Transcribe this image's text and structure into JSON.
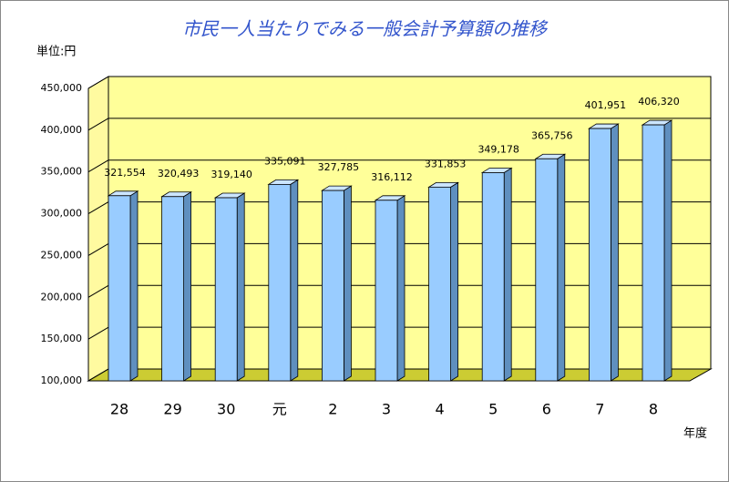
{
  "chart_data": {
    "type": "bar3d",
    "title": "市民一人当たりでみる一般会計予算額の推移",
    "y_label": "単位:円",
    "x_label": "年度",
    "categories": [
      "28",
      "29",
      "30",
      "元",
      "2",
      "3",
      "4",
      "5",
      "6",
      "7",
      "8"
    ],
    "values": [
      321554,
      320493,
      319140,
      335091,
      327785,
      316112,
      331853,
      349178,
      365756,
      401951,
      406320
    ],
    "value_labels": [
      "321,554",
      "320,493",
      "319,140",
      "335,091",
      "327,785",
      "316,112",
      "331,853",
      "349,178",
      "365,756",
      "401,951",
      "406,320"
    ],
    "color": "#99ccff",
    "ylim": [
      100000,
      450000
    ],
    "yticks": [
      {
        "value": 100000,
        "label": "100,000"
      },
      {
        "value": 150000,
        "label": "150,000"
      },
      {
        "value": 200000,
        "label": "200,000"
      },
      {
        "value": 250000,
        "label": "250,000"
      },
      {
        "value": 300000,
        "label": "300,000"
      },
      {
        "value": 350000,
        "label": "350,000"
      },
      {
        "value": 400000,
        "label": "400,000"
      },
      {
        "value": 450000,
        "label": "450,000"
      }
    ],
    "grid": true
  }
}
